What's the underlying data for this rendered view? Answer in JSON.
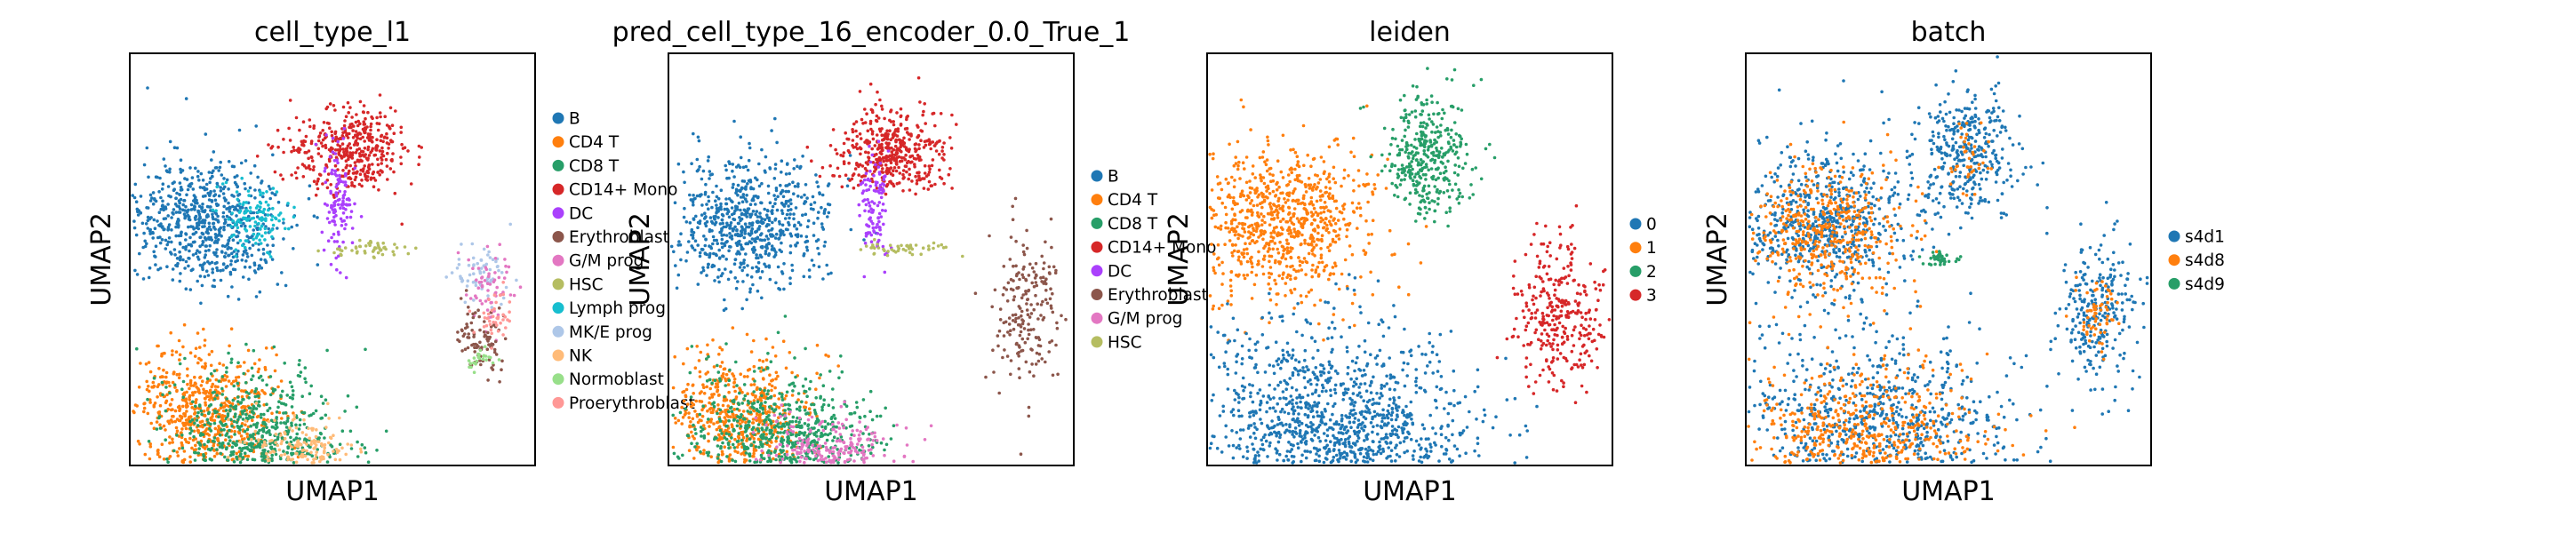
{
  "chart_data": [
    {
      "type": "scatter",
      "title": "cell_type_l1",
      "xlabel": "UMAP1",
      "ylabel": "UMAP2",
      "grid": false,
      "legend_position": "right",
      "categories": [
        {
          "name": "B",
          "color": "#1f77b4"
        },
        {
          "name": "CD4 T",
          "color": "#ff7f0e"
        },
        {
          "name": "CD8 T",
          "color": "#279e68"
        },
        {
          "name": "CD14+ Mono",
          "color": "#d62728"
        },
        {
          "name": "DC",
          "color": "#aa40fc"
        },
        {
          "name": "Erythroblast",
          "color": "#8c564b"
        },
        {
          "name": "G/M prog",
          "color": "#e377c2"
        },
        {
          "name": "HSC",
          "color": "#b5bd61"
        },
        {
          "name": "Lymph prog",
          "color": "#17becf"
        },
        {
          "name": "MK/E prog",
          "color": "#aec7e8"
        },
        {
          "name": "NK",
          "color": "#ffbb78"
        },
        {
          "name": "Normoblast",
          "color": "#98df8a"
        },
        {
          "name": "Proerythroblast",
          "color": "#ff9896"
        }
      ]
    },
    {
      "type": "scatter",
      "title": "pred_cell_type_16_encoder_0.0_True_1",
      "xlabel": "UMAP1",
      "ylabel": "UMAP2",
      "grid": false,
      "legend_position": "right",
      "categories": [
        {
          "name": "B",
          "color": "#1f77b4"
        },
        {
          "name": "CD4 T",
          "color": "#ff7f0e"
        },
        {
          "name": "CD8 T",
          "color": "#279e68"
        },
        {
          "name": "CD14+ Mono",
          "color": "#d62728"
        },
        {
          "name": "DC",
          "color": "#aa40fc"
        },
        {
          "name": "Erythroblast",
          "color": "#8c564b"
        },
        {
          "name": "G/M prog",
          "color": "#e377c2"
        },
        {
          "name": "HSC",
          "color": "#b5bd61"
        }
      ]
    },
    {
      "type": "scatter",
      "title": "leiden",
      "xlabel": "UMAP1",
      "ylabel": "UMAP2",
      "grid": false,
      "legend_position": "right",
      "categories": [
        {
          "name": "0",
          "color": "#1f77b4"
        },
        {
          "name": "1",
          "color": "#ff7f0e"
        },
        {
          "name": "2",
          "color": "#279e68"
        },
        {
          "name": "3",
          "color": "#d62728"
        }
      ]
    },
    {
      "type": "scatter",
      "title": "batch",
      "xlabel": "UMAP1",
      "ylabel": "UMAP2",
      "grid": false,
      "legend_position": "right",
      "categories": [
        {
          "name": "s4d1",
          "color": "#1f77b4"
        },
        {
          "name": "s4d8",
          "color": "#ff7f0e"
        },
        {
          "name": "s4d9",
          "color": "#279e68"
        }
      ]
    }
  ]
}
